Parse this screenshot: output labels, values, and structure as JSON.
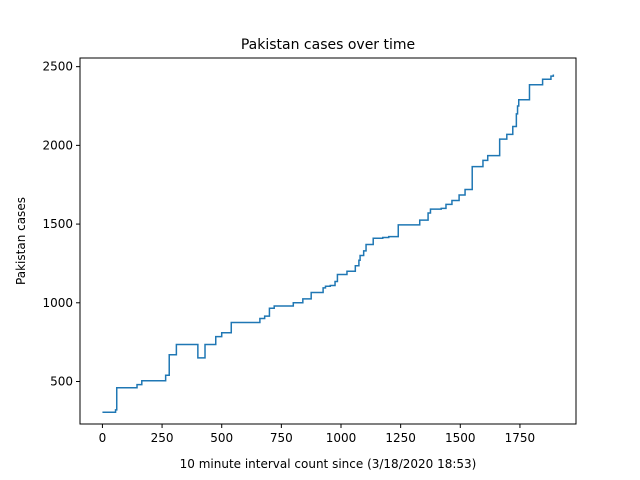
{
  "chart_data": {
    "type": "line",
    "step": true,
    "title": "Pakistan cases over time",
    "xlabel": "10 minute interval count since (3/18/2020 18:53)",
    "ylabel": "Pakistan cases",
    "xlim": [
      -94,
      1985
    ],
    "ylim": [
      230,
      2555
    ],
    "xticks": [
      0,
      250,
      500,
      750,
      1000,
      1250,
      1500,
      1750
    ],
    "yticks": [
      500,
      1000,
      1500,
      2000,
      2500
    ],
    "grid": false,
    "legend": "none",
    "line_color": "#1f77b4",
    "series": [
      {
        "x": [
          0,
          55,
          60,
          145,
          165,
          265,
          280,
          310,
          400,
          430,
          475,
          500,
          540,
          660,
          680,
          700,
          720,
          800,
          840,
          875,
          925,
          935,
          955,
          975,
          985,
          1025,
          1060,
          1075,
          1080,
          1095,
          1105,
          1135,
          1175,
          1200,
          1240,
          1330,
          1365,
          1375,
          1420,
          1440,
          1465,
          1495,
          1520,
          1550,
          1595,
          1615,
          1665,
          1695,
          1720,
          1735,
          1740,
          1745,
          1790,
          1845,
          1880,
          1890
        ],
        "y": [
          305,
          320,
          460,
          480,
          505,
          540,
          670,
          735,
          650,
          735,
          785,
          810,
          875,
          900,
          915,
          965,
          980,
          1000,
          1025,
          1065,
          1095,
          1105,
          1110,
          1135,
          1180,
          1200,
          1235,
          1270,
          1300,
          1330,
          1370,
          1410,
          1415,
          1420,
          1495,
          1525,
          1570,
          1595,
          1600,
          1625,
          1650,
          1685,
          1720,
          1865,
          1905,
          1935,
          2040,
          2070,
          2120,
          2200,
          2250,
          2290,
          2385,
          2420,
          2440,
          2450
        ]
      }
    ]
  }
}
